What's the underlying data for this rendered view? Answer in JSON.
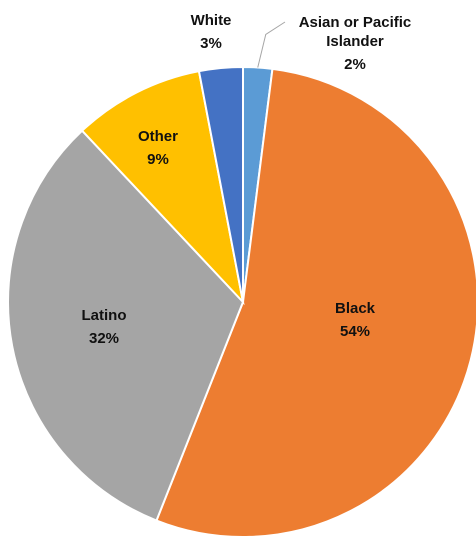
{
  "chart_data": {
    "type": "pie",
    "title": "",
    "start_angle_deg": 0,
    "direction": "clockwise",
    "slices": [
      {
        "label": "Asian or Pacific Islander",
        "value": 2,
        "value_label": "2%",
        "color": "#5B9BD5"
      },
      {
        "label": "Black",
        "value": 54,
        "value_label": "54%",
        "color": "#ED7D31"
      },
      {
        "label": "Latino",
        "value": 32,
        "value_label": "32%",
        "color": "#A5A5A5"
      },
      {
        "label": "Other",
        "value": 9,
        "value_label": "9%",
        "color": "#FFC000"
      },
      {
        "label": "White",
        "value": 3,
        "value_label": "3%",
        "color": "#4472C4"
      }
    ],
    "legend": "none"
  }
}
